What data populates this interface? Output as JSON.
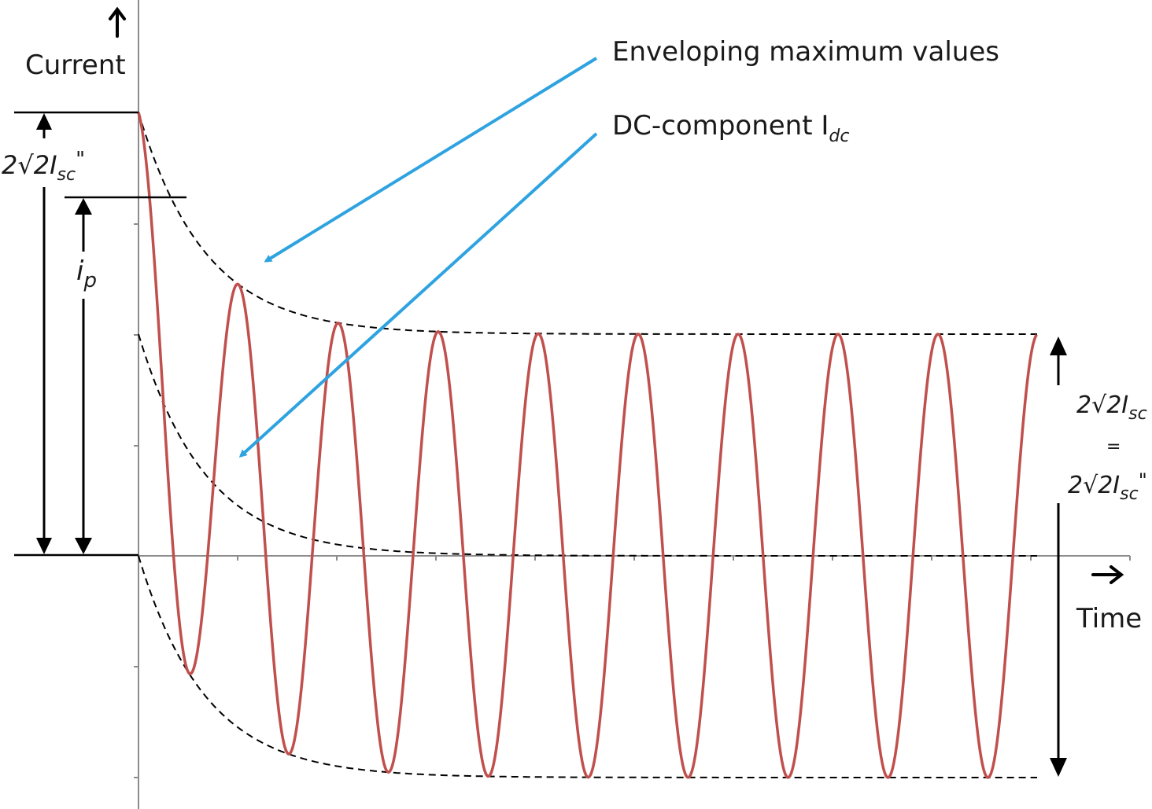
{
  "axes": {
    "y_label": "Current",
    "x_label": "Time"
  },
  "labels": {
    "initial_peak": {
      "prefix": "2√2I",
      "sub": "sc",
      "suffix": "\""
    },
    "peak_current": {
      "main": "i",
      "sub": "p"
    },
    "steady_top": {
      "prefix": "2√2I",
      "sub": "sc"
    },
    "steady_eq": "=",
    "steady_bottom": {
      "prefix": "2√2I",
      "sub": "sc",
      "suffix": "\""
    }
  },
  "callouts": {
    "envelope": "Enveloping maximum values",
    "dc": {
      "main": "DC-component I",
      "sub": "dc"
    }
  },
  "colors": {
    "waveform": "#c0504d",
    "callout": "#2ea3e0",
    "ink": "#000000",
    "axis": "#8c8c8c"
  }
}
